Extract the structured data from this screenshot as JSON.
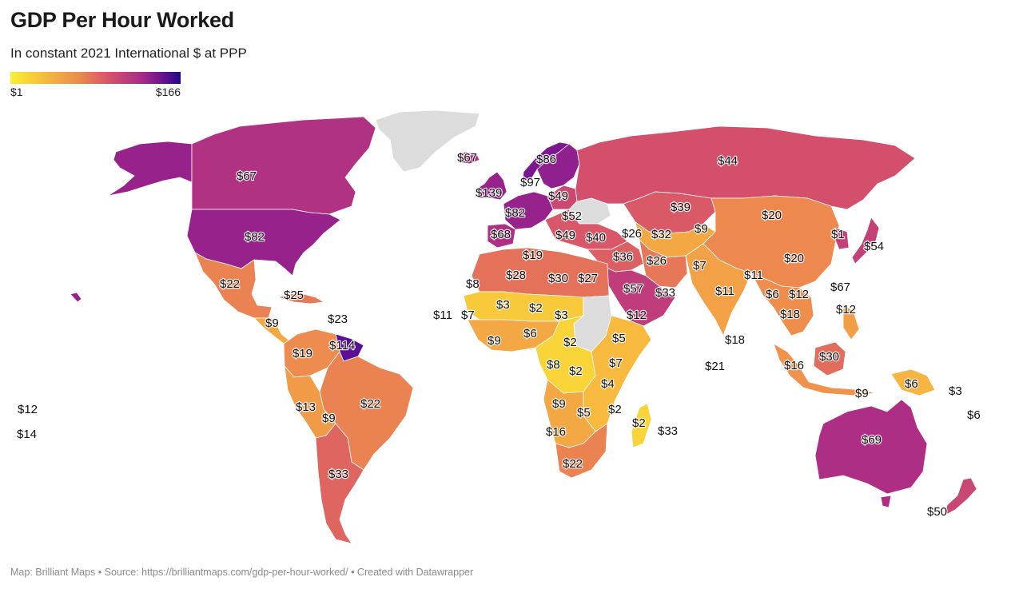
{
  "header": {
    "title": "GDP Per Hour Worked",
    "subtitle": "In constant 2021 International $ at PPP"
  },
  "legend": {
    "min_label": "$1",
    "max_label": "$166",
    "colors": [
      "#f9ee32",
      "#f7b63f",
      "#ee8a4e",
      "#d6526a",
      "#a7288a",
      "#5a0d96",
      "#1d0a8c"
    ],
    "no_data_color": "#dcdcdc"
  },
  "regions": [
    {
      "id": "alaska",
      "value": 82
    },
    {
      "id": "canada",
      "value": 67
    },
    {
      "id": "greenland",
      "value": null
    },
    {
      "id": "usa",
      "value": 82
    },
    {
      "id": "mexico",
      "value": 22
    },
    {
      "id": "central-america",
      "value": 9
    },
    {
      "id": "caribbean",
      "value": 25
    },
    {
      "id": "northern-south-america",
      "value": 19
    },
    {
      "id": "brazil",
      "value": 22
    },
    {
      "id": "andes",
      "value": 13
    },
    {
      "id": "argentina",
      "value": 33
    },
    {
      "id": "guyana",
      "value": 114
    },
    {
      "id": "iceland",
      "value": 67
    },
    {
      "id": "norway",
      "value": 97
    },
    {
      "id": "sweden-finland",
      "value": 86
    },
    {
      "id": "uk-ireland",
      "value": 82
    },
    {
      "id": "western-europe",
      "value": 82
    },
    {
      "id": "iberia",
      "value": 68
    },
    {
      "id": "central-europe",
      "value": 49
    },
    {
      "id": "ukraine",
      "value": null
    },
    {
      "id": "balkans-turkey",
      "value": 40
    },
    {
      "id": "russia",
      "value": 44
    },
    {
      "id": "kazakhstan",
      "value": 39
    },
    {
      "id": "central-asia",
      "value": 9
    },
    {
      "id": "china-mongolia",
      "value": 20
    },
    {
      "id": "japan",
      "value": 54
    },
    {
      "id": "korea",
      "value": 54
    },
    {
      "id": "middle-east",
      "value": 36
    },
    {
      "id": "iran",
      "value": 26
    },
    {
      "id": "arabia",
      "value": 57
    },
    {
      "id": "india",
      "value": 11
    },
    {
      "id": "southeast-asia",
      "value": 18
    },
    {
      "id": "indonesia",
      "value": 16
    },
    {
      "id": "borneo",
      "value": 30
    },
    {
      "id": "new-guinea",
      "value": 6
    },
    {
      "id": "philippines",
      "value": 12
    },
    {
      "id": "north-africa",
      "value": 28
    },
    {
      "id": "sahel",
      "value": 3
    },
    {
      "id": "west-africa",
      "value": 9
    },
    {
      "id": "sudan",
      "value": null
    },
    {
      "id": "central-africa",
      "value": 2
    },
    {
      "id": "east-africa",
      "value": 5
    },
    {
      "id": "southern-africa",
      "value": 22
    },
    {
      "id": "angola-namibia",
      "value": 9
    },
    {
      "id": "madagascar",
      "value": 2
    },
    {
      "id": "australia",
      "value": 69
    },
    {
      "id": "tasmania",
      "value": 69
    },
    {
      "id": "new-zealand",
      "value": 50
    },
    {
      "id": "hawaii",
      "value": 82
    }
  ],
  "labels": [
    {
      "id": "canada",
      "text": "$67"
    },
    {
      "id": "usa",
      "text": "$82"
    },
    {
      "id": "mexico",
      "text": "$22"
    },
    {
      "id": "cuba",
      "text": "$25"
    },
    {
      "id": "costa-rica",
      "text": "$9"
    },
    {
      "id": "trinidad",
      "text": "$23"
    },
    {
      "id": "guyana",
      "text": "$114"
    },
    {
      "id": "colombia",
      "text": "$19"
    },
    {
      "id": "peru",
      "text": "$13"
    },
    {
      "id": "bolivia",
      "text": "$9"
    },
    {
      "id": "brazil",
      "text": "$22"
    },
    {
      "id": "argentina",
      "text": "$33"
    },
    {
      "id": "pacific-1",
      "text": "$12"
    },
    {
      "id": "pacific-2",
      "text": "$14"
    },
    {
      "id": "iceland",
      "text": "$67"
    },
    {
      "id": "sweden",
      "text": "$86"
    },
    {
      "id": "norway",
      "text": "$97"
    },
    {
      "id": "ireland",
      "text": "$139"
    },
    {
      "id": "poland",
      "text": "$49"
    },
    {
      "id": "france",
      "text": "$82"
    },
    {
      "id": "ukraine",
      "text": "$52"
    },
    {
      "id": "spain",
      "text": "$68"
    },
    {
      "id": "italy",
      "text": "$49"
    },
    {
      "id": "turkey",
      "text": "$40"
    },
    {
      "id": "georgia",
      "text": "$26"
    },
    {
      "id": "turkmenistan",
      "text": "$32"
    },
    {
      "id": "russia",
      "text": "$44"
    },
    {
      "id": "kazakhstan",
      "text": "$39"
    },
    {
      "id": "kyrgyzstan",
      "text": "$9"
    },
    {
      "id": "mongolia",
      "text": "$20"
    },
    {
      "id": "north-korea",
      "text": "$1"
    },
    {
      "id": "japan",
      "text": "$54"
    },
    {
      "id": "china",
      "text": "$20"
    },
    {
      "id": "taiwan",
      "text": "$67"
    },
    {
      "id": "iraq",
      "text": "$36"
    },
    {
      "id": "iran",
      "text": "$26"
    },
    {
      "id": "pakistan",
      "text": "$7"
    },
    {
      "id": "nepal",
      "text": "$11"
    },
    {
      "id": "india",
      "text": "$11"
    },
    {
      "id": "myanmar",
      "text": "$6"
    },
    {
      "id": "laos",
      "text": "$12"
    },
    {
      "id": "cambodia",
      "text": "$18"
    },
    {
      "id": "philippines",
      "text": "$12"
    },
    {
      "id": "saudi-arabia",
      "text": "$57"
    },
    {
      "id": "oman",
      "text": "$33"
    },
    {
      "id": "yemen",
      "text": "$12"
    },
    {
      "id": "sri-lanka",
      "text": "$18"
    },
    {
      "id": "maldives",
      "text": "$21"
    },
    {
      "id": "malaysia",
      "text": "$16"
    },
    {
      "id": "borneo",
      "text": "$30"
    },
    {
      "id": "indonesia",
      "text": "$9"
    },
    {
      "id": "new-guinea",
      "text": "$6"
    },
    {
      "id": "solomon",
      "text": "$3"
    },
    {
      "id": "vanuatu",
      "text": "$6"
    },
    {
      "id": "tunisia",
      "text": "$19"
    },
    {
      "id": "western-sahara",
      "text": "$8"
    },
    {
      "id": "algeria",
      "text": "$28"
    },
    {
      "id": "libya",
      "text": "$30"
    },
    {
      "id": "egypt",
      "text": "$27"
    },
    {
      "id": "cape-verde",
      "text": "$11"
    },
    {
      "id": "senegal",
      "text": "$7"
    },
    {
      "id": "mali",
      "text": "$3"
    },
    {
      "id": "niger",
      "text": "$2"
    },
    {
      "id": "chad",
      "text": "$3"
    },
    {
      "id": "ghana",
      "text": "$9"
    },
    {
      "id": "nigeria",
      "text": "$6"
    },
    {
      "id": "car",
      "text": "$2"
    },
    {
      "id": "ethiopia",
      "text": "$5"
    },
    {
      "id": "gabon",
      "text": "$8"
    },
    {
      "id": "drc",
      "text": "$2"
    },
    {
      "id": "kenya",
      "text": "$7"
    },
    {
      "id": "tanzania",
      "text": "$4"
    },
    {
      "id": "angola",
      "text": "$9"
    },
    {
      "id": "zambia",
      "text": "$5"
    },
    {
      "id": "mozambique",
      "text": "$2"
    },
    {
      "id": "madagascar",
      "text": "$2"
    },
    {
      "id": "mauritius",
      "text": "$33"
    },
    {
      "id": "botswana",
      "text": "$16"
    },
    {
      "id": "south-africa",
      "text": "$22"
    },
    {
      "id": "australia",
      "text": "$69"
    },
    {
      "id": "new-zealand",
      "text": "$50"
    }
  ],
  "footer": {
    "credit": "Map: Brilliant Maps • Source: https://brilliantmaps.com/gdp-per-hour-worked/ • Created with Datawrapper"
  }
}
